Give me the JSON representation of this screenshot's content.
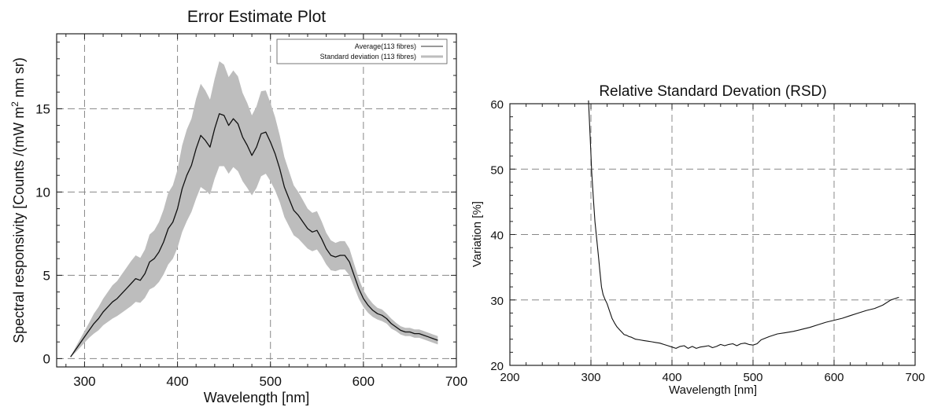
{
  "chart_data": [
    {
      "type": "area",
      "title": "Error Estimate Plot",
      "xlabel": "Wavelength [nm]",
      "ylabel_parts": [
        "Spectral responsivity [Counts /(mW m",
        "2",
        " nm sr)"
      ],
      "xlim": [
        270,
        700
      ],
      "ylim": [
        -0.5,
        19.5
      ],
      "xticks": [
        300,
        400,
        500,
        600,
        700
      ],
      "yticks": [
        0,
        5,
        10,
        15
      ],
      "grid": true,
      "legend_position": "top-right",
      "legend": [
        "Average(113 fibres)",
        "Standard deviation (113 fibres)"
      ],
      "series": [
        {
          "name": "Average(113 fibres)",
          "style": "line",
          "x": [
            285,
            290,
            295,
            300,
            305,
            310,
            315,
            320,
            325,
            330,
            335,
            340,
            345,
            350,
            355,
            360,
            365,
            370,
            375,
            380,
            385,
            390,
            395,
            400,
            405,
            410,
            415,
            420,
            425,
            430,
            435,
            440,
            445,
            450,
            455,
            460,
            465,
            470,
            475,
            480,
            485,
            490,
            495,
            500,
            505,
            510,
            515,
            520,
            525,
            530,
            535,
            540,
            545,
            550,
            555,
            560,
            565,
            570,
            575,
            580,
            585,
            590,
            595,
            600,
            605,
            610,
            615,
            620,
            625,
            630,
            635,
            640,
            645,
            650,
            655,
            660,
            665,
            670,
            675,
            680
          ],
          "y": [
            0.1,
            0.5,
            0.9,
            1.3,
            1.7,
            2.1,
            2.4,
            2.8,
            3.1,
            3.4,
            3.6,
            3.9,
            4.2,
            4.5,
            4.8,
            4.7,
            5.1,
            5.8,
            6.0,
            6.4,
            7.0,
            7.8,
            8.2,
            9.0,
            10.2,
            11.0,
            11.6,
            12.6,
            13.4,
            13.1,
            12.7,
            13.8,
            14.7,
            14.6,
            14.0,
            14.4,
            14.1,
            13.3,
            12.8,
            12.2,
            12.7,
            13.5,
            13.6,
            13.0,
            12.3,
            11.4,
            10.3,
            9.6,
            8.9,
            8.6,
            8.2,
            7.8,
            7.6,
            7.7,
            7.2,
            6.6,
            6.2,
            6.1,
            6.2,
            6.2,
            5.8,
            5.0,
            4.2,
            3.6,
            3.2,
            2.9,
            2.7,
            2.6,
            2.4,
            2.1,
            1.9,
            1.7,
            1.6,
            1.6,
            1.5,
            1.5,
            1.4,
            1.3,
            1.2,
            1.1
          ]
        },
        {
          "name": "Standard deviation (113 fibres)",
          "style": "band",
          "x": [
            285,
            290,
            295,
            300,
            305,
            310,
            315,
            320,
            325,
            330,
            335,
            340,
            345,
            350,
            355,
            360,
            365,
            370,
            375,
            380,
            385,
            390,
            395,
            400,
            405,
            410,
            415,
            420,
            425,
            430,
            435,
            440,
            445,
            450,
            455,
            460,
            465,
            470,
            475,
            480,
            485,
            490,
            495,
            500,
            505,
            510,
            515,
            520,
            525,
            530,
            535,
            540,
            545,
            550,
            555,
            560,
            565,
            570,
            575,
            580,
            585,
            590,
            595,
            600,
            605,
            610,
            615,
            620,
            625,
            630,
            635,
            640,
            645,
            650,
            655,
            660,
            665,
            670,
            675,
            680
          ],
          "upper": [
            0.1,
            0.65,
            1.15,
            1.65,
            2.15,
            2.7,
            3.1,
            3.6,
            4.0,
            4.4,
            4.65,
            5.05,
            5.45,
            5.85,
            6.2,
            6.05,
            6.55,
            7.45,
            7.7,
            8.2,
            8.95,
            9.95,
            10.4,
            11.35,
            12.8,
            13.75,
            14.4,
            15.6,
            16.5,
            16.1,
            15.55,
            16.8,
            17.85,
            17.65,
            16.9,
            17.3,
            16.95,
            15.95,
            15.35,
            14.6,
            15.15,
            16.05,
            16.1,
            15.35,
            14.5,
            13.4,
            12.1,
            11.25,
            10.4,
            10.0,
            9.5,
            9.0,
            8.75,
            8.85,
            8.25,
            7.55,
            7.1,
            6.95,
            7.05,
            7.05,
            6.6,
            5.7,
            4.8,
            4.1,
            3.65,
            3.3,
            3.05,
            2.95,
            2.7,
            2.4,
            2.15,
            1.95,
            1.85,
            1.85,
            1.75,
            1.75,
            1.65,
            1.55,
            1.45,
            1.35
          ],
          "lower": [
            0.1,
            0.35,
            0.65,
            0.95,
            1.25,
            1.5,
            1.7,
            2.0,
            2.2,
            2.4,
            2.55,
            2.75,
            2.95,
            3.15,
            3.4,
            3.35,
            3.65,
            4.15,
            4.3,
            4.6,
            5.05,
            5.65,
            6.0,
            6.65,
            7.6,
            8.25,
            8.8,
            9.6,
            10.3,
            10.1,
            9.85,
            10.8,
            11.55,
            11.55,
            11.1,
            11.5,
            11.25,
            10.65,
            10.25,
            9.8,
            10.25,
            10.95,
            11.1,
            10.65,
            10.1,
            9.4,
            8.5,
            7.95,
            7.4,
            7.2,
            6.9,
            6.6,
            6.45,
            6.55,
            6.15,
            5.65,
            5.3,
            5.25,
            5.35,
            5.35,
            5.0,
            4.3,
            3.6,
            3.1,
            2.75,
            2.5,
            2.35,
            2.25,
            2.1,
            1.8,
            1.65,
            1.45,
            1.35,
            1.35,
            1.25,
            1.25,
            1.15,
            1.05,
            0.95,
            0.85
          ]
        }
      ]
    },
    {
      "type": "line",
      "title": "Relative Standard Devation (RSD)",
      "xlabel": "Wavelength [nm]",
      "ylabel": "Variation [%]",
      "xlim": [
        200,
        700
      ],
      "ylim": [
        20,
        60
      ],
      "xticks": [
        200,
        300,
        400,
        500,
        600,
        700
      ],
      "yticks": [
        20,
        30,
        40,
        50,
        60
      ],
      "grid": true,
      "series": [
        {
          "x": [
            297,
            299,
            301,
            303,
            305,
            307,
            309,
            311,
            313,
            315,
            317,
            320,
            323,
            326,
            329,
            332,
            335,
            338,
            341,
            344,
            347,
            350,
            355,
            360,
            365,
            370,
            375,
            380,
            385,
            390,
            395,
            400,
            405,
            410,
            415,
            420,
            425,
            430,
            435,
            440,
            445,
            450,
            455,
            460,
            465,
            470,
            475,
            480,
            485,
            490,
            495,
            500,
            505,
            510,
            520,
            530,
            540,
            550,
            560,
            570,
            580,
            590,
            600,
            610,
            620,
            630,
            640,
            650,
            660,
            670,
            680
          ],
          "y": [
            60.5,
            55.0,
            49.5,
            45.5,
            42.0,
            39.5,
            37.0,
            34.5,
            32.0,
            30.8,
            30.2,
            29.4,
            28.3,
            27.2,
            26.5,
            25.9,
            25.5,
            25.1,
            24.7,
            24.6,
            24.4,
            24.3,
            24.0,
            23.9,
            23.8,
            23.7,
            23.6,
            23.5,
            23.4,
            23.2,
            23.0,
            22.8,
            22.6,
            22.9,
            23.0,
            22.6,
            22.9,
            22.6,
            22.8,
            22.9,
            23.0,
            22.7,
            22.9,
            23.2,
            23.0,
            23.2,
            23.3,
            23.0,
            23.3,
            23.4,
            23.2,
            23.1,
            23.3,
            23.9,
            24.4,
            24.8,
            25.0,
            25.2,
            25.5,
            25.8,
            26.2,
            26.6,
            26.9,
            27.2,
            27.6,
            28.0,
            28.4,
            28.7,
            29.2,
            30.0,
            30.4
          ]
        }
      ]
    }
  ]
}
